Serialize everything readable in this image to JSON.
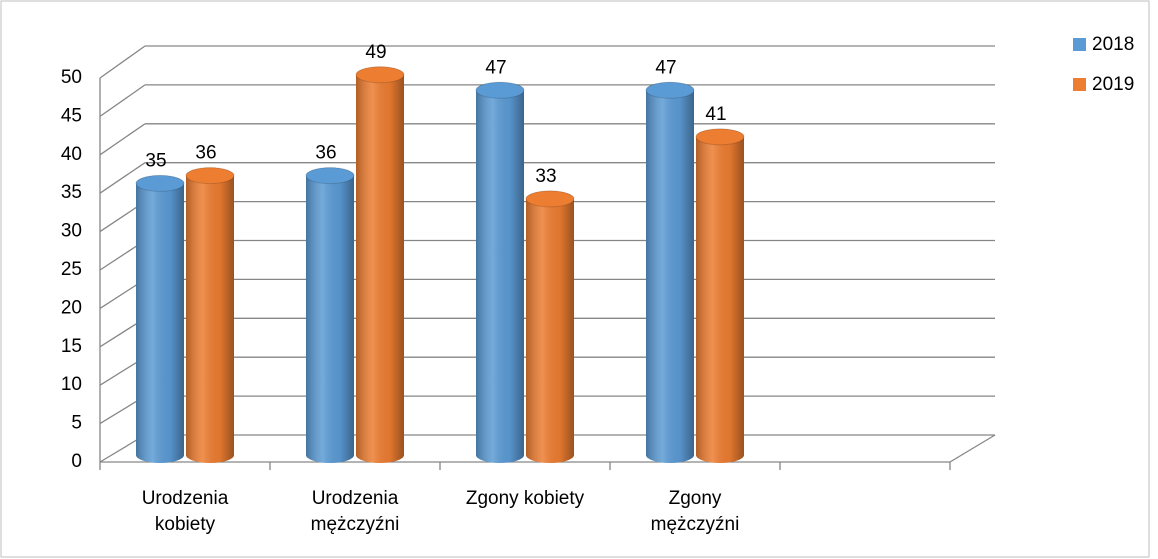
{
  "chart_data": {
    "type": "bar3d",
    "categories": [
      "Urodzenia kobiety",
      "Urodzenia mężczyźni",
      "Zgony kobiety",
      "Zgony mężczyźni"
    ],
    "series": [
      {
        "name": "2018",
        "color": "#5b9bd5",
        "values": [
          35,
          36,
          47,
          47
        ]
      },
      {
        "name": "2019",
        "color": "#ed7d31",
        "values": [
          36,
          49,
          33,
          41
        ]
      }
    ],
    "ylim": [
      0,
      50
    ],
    "yticks": [
      0,
      5,
      10,
      15,
      20,
      25,
      30,
      35,
      40,
      45,
      50
    ],
    "grid": true,
    "legend": "top-right"
  }
}
